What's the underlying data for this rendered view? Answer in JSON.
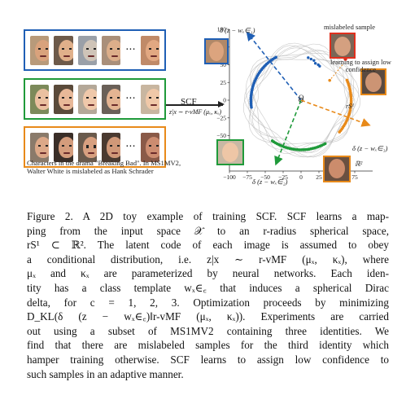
{
  "figure": {
    "panel_caption": [
      "Characters in the drama \"Breaking Bad\". In MS1MV2,",
      "Walter White is mislabeled as Hank Schrader"
    ],
    "ellipsis": "···",
    "scf_label": "SCF",
    "scf_sub": "z|x ∼ r-vMF (μₓ, κₓ)",
    "annotations": {
      "top_dash": "δ (z − wₓ∈₁)",
      "mislabeled": "mislabeled sample",
      "learning": [
        "learning to assign low",
        "confidence"
      ],
      "rs1": "rS¹",
      "right_dash": "δ (z − wₓ∈₃)",
      "r2": "ℝ²",
      "bottom_dash": "δ (z − wₓ∈₂)",
      "origin": "O"
    },
    "colors": {
      "blue": "#1f5fb5",
      "green": "#1f9a3a",
      "orange": "#e88a1a",
      "red": "#e0301e"
    }
  },
  "chart_data": {
    "type": "scatter",
    "xlim": [
      -100,
      100
    ],
    "ylim": [
      -100,
      100
    ],
    "xticks": [
      "−100",
      "−75",
      "−50",
      "−25",
      "0",
      "25",
      "50",
      "75"
    ],
    "yticks": [
      "100",
      "75",
      "50",
      "25",
      "0",
      "−25",
      "−50",
      "−75"
    ],
    "circle_radius": 70
  },
  "body": {
    "lines": [
      "Figure 2. A 2D toy example of training SCF. SCF learns a map-",
      "ping from the input space 𝒳 to an r-radius spherical space,",
      "rS¹ ⊂ ℝ². The latent code of each image is assumed to obey",
      "a conditional distribution, i.e. z|x ∼ r-vMF (μₓ, κₓ), where",
      "μₓ and κₓ are parameterized by neural networks. Each iden-",
      "tity has a class template wₓ∈꜀ that induces a spherical Dirac",
      "delta, for c = 1, 2, 3. Optimization proceeds by minimizing",
      "D_KL(δ (z − wₓ∈꜀)‖r-vMF (μₓ, κₓ)). Experiments are carried",
      "out using a subset of MS1MV2 containing three identities. We",
      "find that there are mislabeled samples for the third identity which",
      "hamper training otherwise. SCF learns to assign low confidence to",
      "such samples in an adaptive manner."
    ]
  }
}
